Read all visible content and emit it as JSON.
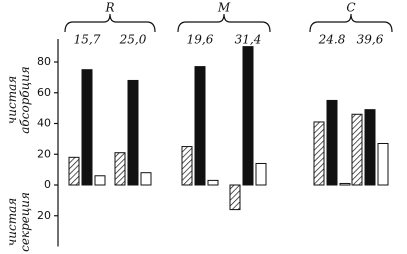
{
  "chart_data": {
    "type": "bar",
    "groups": [
      "R",
      "M",
      "C"
    ],
    "categories": [
      "15,7",
      "25,0",
      "19,6",
      "31,4",
      "24.8",
      "39,6"
    ],
    "series": [
      {
        "color": "#111111",
        "pattern": "hatch",
        "values": [
          18,
          21,
          25,
          -16,
          41,
          46
        ]
      },
      {
        "color": "#111111",
        "pattern": "solid",
        "values": [
          75,
          68,
          77,
          90,
          55,
          49
        ]
      },
      {
        "color": "#ffffff",
        "pattern": "outline",
        "values": [
          6,
          8,
          3,
          14,
          1,
          27
        ]
      }
    ],
    "y_label_upper": "чистая абсорбция",
    "y_label_lower": "чистая секреция",
    "ylim": [
      -40,
      95
    ],
    "yticks": [
      80,
      60,
      40,
      20,
      0,
      {
        "value": -20,
        "label": "20"
      }
    ]
  }
}
